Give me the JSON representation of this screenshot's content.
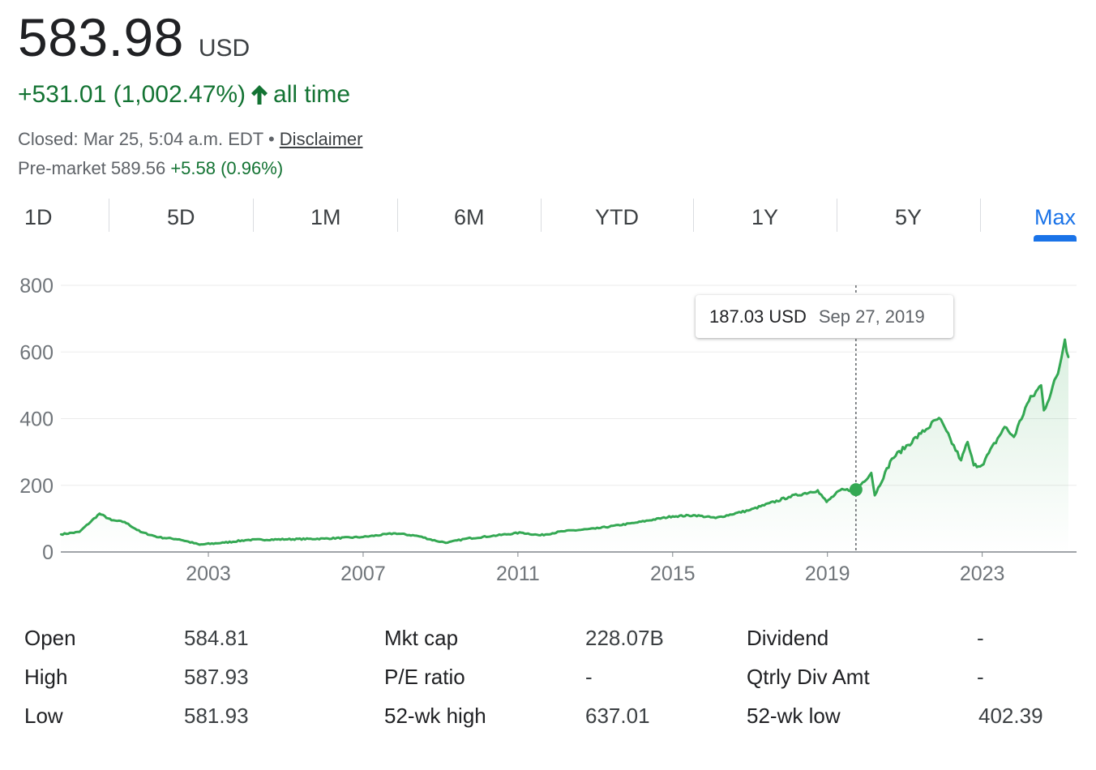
{
  "header": {
    "price": "583.98",
    "currency": "USD",
    "change": "+531.01 (1,002.47%)",
    "change_period": "all time",
    "closed_text": "Closed: Mar 25, 5:04 a.m. EDT",
    "separator": "•",
    "disclaimer": "Disclaimer",
    "premarket_label": "Pre-market 589.56",
    "premarket_change": "+5.58 (0.96%)",
    "change_color": "#137333",
    "arrow_icon": "arrow-up-icon"
  },
  "tabs": [
    {
      "label": "1D"
    },
    {
      "label": "5D"
    },
    {
      "label": "1M"
    },
    {
      "label": "6M"
    },
    {
      "label": "YTD"
    },
    {
      "label": "1Y"
    },
    {
      "label": "5Y"
    },
    {
      "label": "Max",
      "active": true
    }
  ],
  "tooltip": {
    "price": "187.03 USD",
    "date": "Sep 27, 2019"
  },
  "chart_data": {
    "type": "area",
    "line_color": "#34a853",
    "x_ticks": [
      "2003",
      "2007",
      "2011",
      "2015",
      "2019",
      "2023"
    ],
    "y_ticks": [
      "0",
      "200",
      "400",
      "600",
      "800"
    ],
    "ylim": [
      0,
      800
    ],
    "xlim": [
      "1999-03-10",
      "2025-03-25"
    ],
    "grid": true,
    "highlight": {
      "date": "2019-09-27",
      "value": 187.03
    },
    "series": [
      {
        "x": [
          "1999-03-10",
          "1999-09-01",
          "2000-03-10",
          "2000-07-01",
          "2000-11-01",
          "2001-04-01",
          "2001-09-21",
          "2002-04-01",
          "2002-10-09",
          "2003-06-01",
          "2004-01-01",
          "2005-01-01",
          "2006-01-01",
          "2007-01-01",
          "2007-10-31",
          "2008-06-01",
          "2008-11-20",
          "2009-03-09",
          "2009-09-01",
          "2010-05-01",
          "2011-02-01",
          "2011-08-01",
          "2012-03-01",
          "2013-01-01",
          "2014-01-01",
          "2015-01-01",
          "2015-08-01",
          "2016-02-11",
          "2017-01-01",
          "2018-01-01",
          "2018-10-01",
          "2018-12-24",
          "2019-05-01",
          "2019-09-27",
          "2020-02-19",
          "2020-03-23",
          "2020-09-01",
          "2021-06-01",
          "2021-11-19",
          "2022-06-16",
          "2022-08-16",
          "2022-10-13",
          "2022-12-28",
          "2023-07-31",
          "2023-10-27",
          "2024-03-01",
          "2024-07-10",
          "2024-08-05",
          "2024-12-16",
          "2025-02-19",
          "2025-03-25"
        ],
        "y": [
          53,
          60,
          115,
          95,
          90,
          60,
          44,
          38,
          22,
          28,
          36,
          38,
          40,
          45,
          56,
          48,
          33,
          28,
          40,
          48,
          58,
          50,
          62,
          70,
          87,
          107,
          110,
          102,
          126,
          165,
          185,
          150,
          185,
          187.03,
          237,
          170,
          280,
          355,
          402,
          275,
          330,
          260,
          260,
          375,
          345,
          445,
          500,
          425,
          535,
          637,
          583.98
        ]
      }
    ]
  }
}
